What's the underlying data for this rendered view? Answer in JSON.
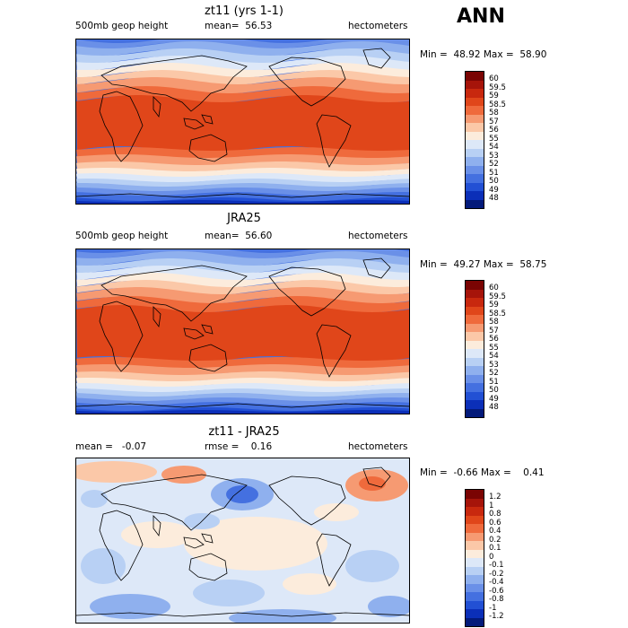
{
  "season": "ANN",
  "panels": [
    {
      "title": "zt11 (yrs 1-1)",
      "left_label": "500mb geop height",
      "stat": "mean=  56.53",
      "units": "hectometers",
      "minmax": "Min =  48.92 Max =  58.90"
    },
    {
      "title": "JRA25",
      "left_label": "500mb geop height",
      "stat": "mean=  56.60",
      "units": "hectometers",
      "minmax": "Min =  49.27 Max =  58.75"
    },
    {
      "title": "zt11 - JRA25",
      "left_label": "mean =   -0.07",
      "stat": "rmse =    0.16",
      "units": "hectometers",
      "minmax": "Min =  -0.66 Max =    0.41"
    }
  ],
  "colorbars": {
    "abs": {
      "labels": [
        "60",
        "59.5",
        "59",
        "58.5",
        "58",
        "57",
        "56",
        "55",
        "54",
        "53",
        "52",
        "51",
        "50",
        "49",
        "48"
      ],
      "colors": [
        "#7a0403",
        "#a6140a",
        "#c8280e",
        "#e0461a",
        "#ef6a3c",
        "#f69a72",
        "#fbc8a8",
        "#fcecdc",
        "#dde8f8",
        "#b8d0f4",
        "#8fb0ee",
        "#6a90e8",
        "#4470e0",
        "#2250d4",
        "#0b2fb8",
        "#031a7a"
      ]
    },
    "diff": {
      "labels": [
        "1.2",
        "1",
        "0.8",
        "0.6",
        "0.4",
        "0.2",
        "0.1",
        "0",
        "-0.1",
        "-0.2",
        "-0.4",
        "-0.6",
        "-0.8",
        "-1",
        "-1.2"
      ],
      "colors": [
        "#7a0403",
        "#a6140a",
        "#c8280e",
        "#e0461a",
        "#ef6a3c",
        "#f69a72",
        "#fbc8a8",
        "#fcecdc",
        "#dde8f8",
        "#b8d0f4",
        "#8fb0ee",
        "#6a90e8",
        "#4470e0",
        "#2250d4",
        "#0b2fb8",
        "#031a7a"
      ]
    }
  }
}
